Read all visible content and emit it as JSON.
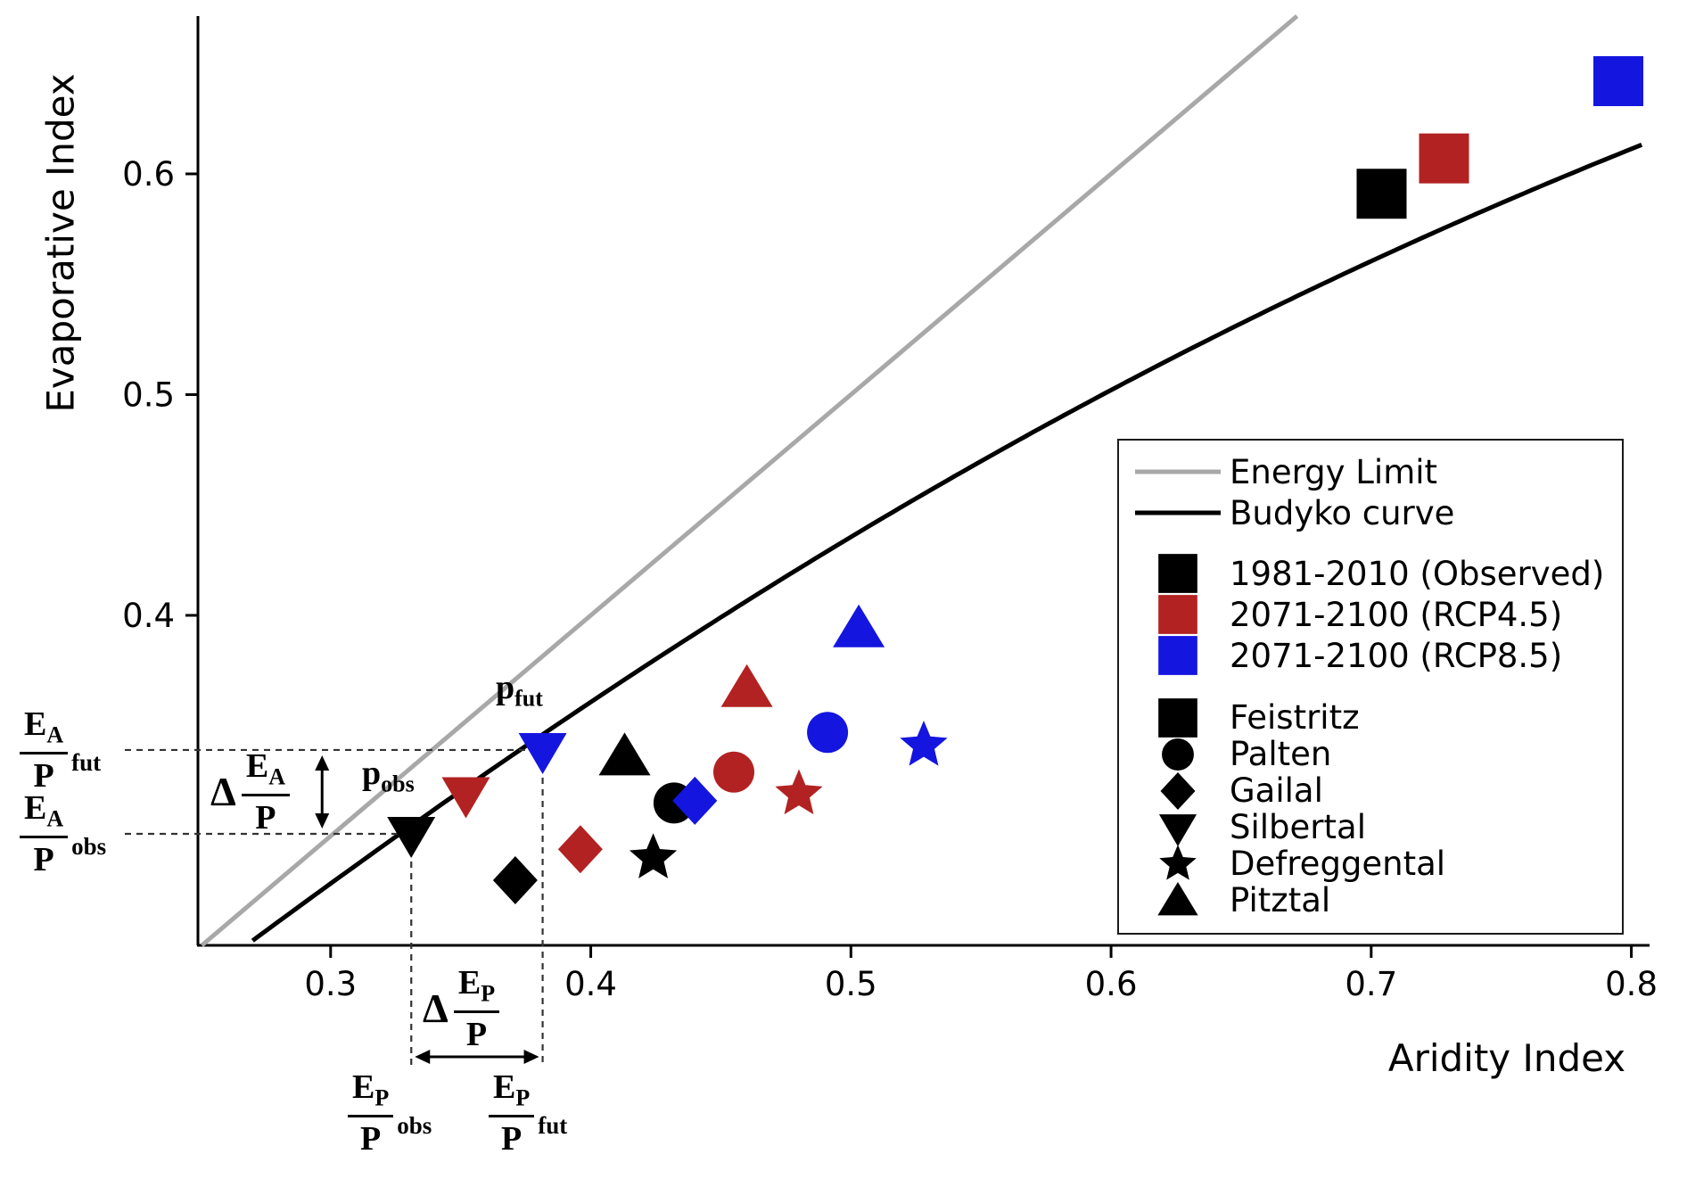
{
  "chart_data": {
    "type": "scatter",
    "title": "",
    "xlabel": "Aridity Index",
    "ylabel": "Evaporative Index",
    "xlim": [
      0.249,
      0.807
    ],
    "ylim": [
      0.2505,
      0.6715
    ],
    "x_ticks": [
      0.3,
      0.4,
      0.5,
      0.6,
      0.7,
      0.8
    ],
    "y_ticks": [
      0.4,
      0.5,
      0.6
    ],
    "grid": false,
    "legend_position": "right-inside",
    "lines": [
      {
        "name": "Energy Limit",
        "color": "#a8a8a8",
        "kind": "identity"
      },
      {
        "name": "Budyko curve",
        "color": "#000000",
        "kind": "budyko"
      }
    ],
    "catchments": [
      "Feistritz",
      "Palten",
      "Gailal",
      "Silbertal",
      "Defreggental",
      "Pitztal"
    ],
    "markers": {
      "Feistritz": "square",
      "Palten": "circle",
      "Gailal": "diamond",
      "Silbertal": "triangle-down",
      "Defreggental": "star",
      "Pitztal": "triangle-up"
    },
    "series": [
      {
        "name": "1981-2010 (Observed)",
        "color": "#000000",
        "points": [
          [
            0.704,
            0.591
          ],
          [
            0.432,
            0.315
          ],
          [
            0.371,
            0.28
          ],
          [
            0.331,
            0.301
          ],
          [
            0.424,
            0.29
          ],
          [
            0.413,
            0.336
          ]
        ]
      },
      {
        "name": "2071-2100 (RCP4.5)",
        "color": "#b22222",
        "points": [
          [
            0.728,
            0.607
          ],
          [
            0.455,
            0.329
          ],
          [
            0.396,
            0.294
          ],
          [
            0.352,
            0.319
          ],
          [
            0.48,
            0.319
          ],
          [
            0.46,
            0.367
          ]
        ]
      },
      {
        "name": "2071-2100 (RCP8.5)",
        "color": "#1515e0",
        "points": [
          [
            0.795,
            0.642
          ],
          [
            0.491,
            0.347
          ],
          [
            0.44,
            0.316
          ],
          [
            0.3815,
            0.339
          ],
          [
            0.528,
            0.341
          ],
          [
            0.503,
            0.394
          ]
        ]
      }
    ]
  },
  "annotations": {
    "p_obs": {
      "base": "p",
      "sub": "obs"
    },
    "p_fut": {
      "base": "p",
      "sub": "fut"
    },
    "ea_p_fut": {
      "num": "E",
      "num_sub": "A",
      "den": "P",
      "suffix": "fut"
    },
    "ea_p_obs": {
      "num": "E",
      "num_sub": "A",
      "den": "P",
      "suffix": "obs"
    },
    "delta_ea_p": {
      "delta": "Δ",
      "num": "E",
      "num_sub": "A",
      "den": "P"
    },
    "delta_ep_p": {
      "delta": "Δ",
      "num": "E",
      "num_sub": "P",
      "den": "P"
    },
    "ep_p_obs": {
      "num": "E",
      "num_sub": "P",
      "den": "P",
      "suffix": "obs"
    },
    "ep_p_fut": {
      "num": "E",
      "num_sub": "P",
      "den": "P",
      "suffix": "fut"
    }
  }
}
